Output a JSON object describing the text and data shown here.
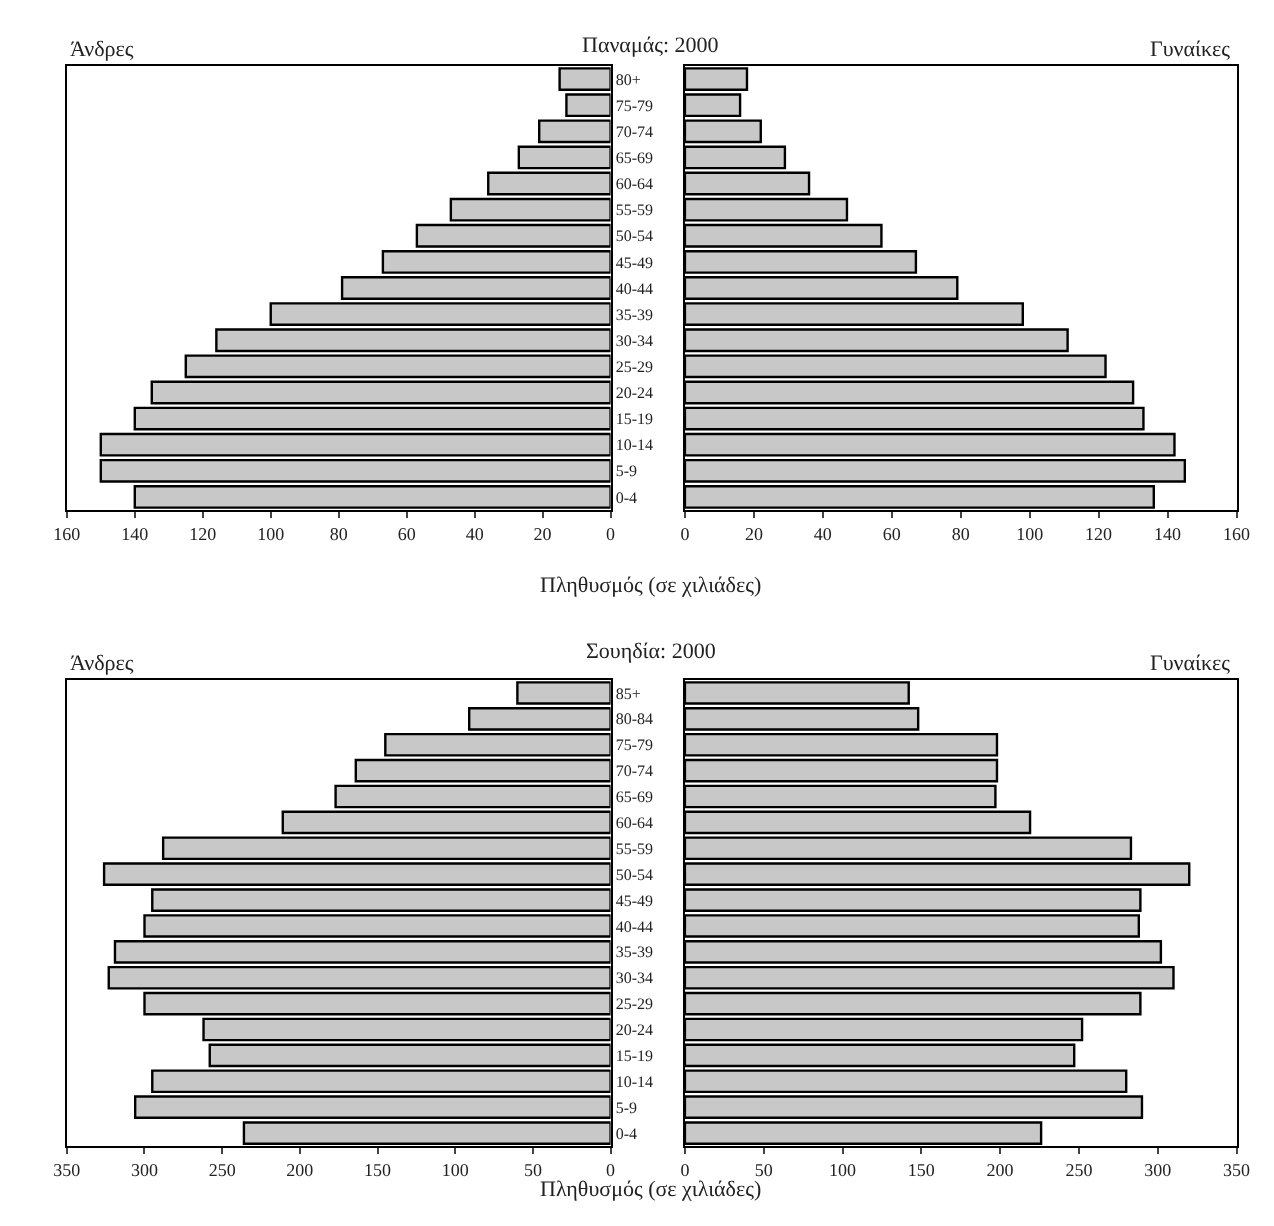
{
  "chart_data": [
    {
      "type": "bar",
      "orientation": "horizontal",
      "title": "Παναμάς: 2000",
      "xlabel": "Πληθυσμός (σε χιλιάδες)",
      "annotations": [
        "Άνδρες"
      ],
      "categories": [
        "80+",
        "75-79",
        "70-74",
        "65-69",
        "60-64",
        "55-59",
        "50-54",
        "45-49",
        "40-44",
        "35-39",
        "30-34",
        "25-29",
        "20-24",
        "15-19",
        "10-14",
        "5-9",
        "0-4"
      ],
      "series": [
        {
          "color": "#c8c8c8",
          "values": [
            15,
            13,
            21,
            27,
            36,
            47,
            57,
            67,
            79,
            100,
            116,
            125,
            135,
            140,
            150,
            150,
            140
          ]
        }
      ],
      "xlim": [
        160,
        0
      ],
      "xticks": [
        160,
        140,
        120,
        100,
        80,
        60,
        40,
        20,
        0
      ]
    },
    {
      "type": "bar",
      "orientation": "horizontal",
      "annotations": [
        "Γυναίκες"
      ],
      "categories": [
        null,
        null,
        null,
        null,
        null,
        null,
        null,
        null,
        null,
        null,
        null,
        null,
        null,
        null,
        null,
        null,
        null
      ],
      "series": [
        {
          "color": "#c8c8c8",
          "values": [
            18,
            16,
            22,
            29,
            36,
            47,
            57,
            67,
            79,
            98,
            111,
            122,
            130,
            133,
            142,
            145,
            136
          ]
        }
      ],
      "xlim": [
        0,
        160
      ],
      "xticks": [
        0,
        20,
        40,
        60,
        80,
        100,
        120,
        140,
        160
      ]
    },
    {
      "type": "bar",
      "orientation": "horizontal",
      "title": "Σουηδία: 2000",
      "xlabel": "Πληθυσμός (σε χιλιάδες)",
      "annotations": [
        "Άνδρες"
      ],
      "categories": [
        "85+",
        "80-84",
        "75-79",
        "70-74",
        "65-69",
        "60-64",
        "55-59",
        "50-54",
        "45-49",
        "40-44",
        "35-39",
        "30-34",
        "25-29",
        "20-24",
        "15-19",
        "10-14",
        "5-9",
        "0-4"
      ],
      "series": [
        {
          "color": "#c8c8c8",
          "values": [
            60,
            91,
            145,
            164,
            177,
            211,
            288,
            326,
            295,
            300,
            319,
            323,
            300,
            262,
            258,
            295,
            306,
            236
          ]
        }
      ],
      "xlim": [
        350,
        0
      ],
      "xticks": [
        350,
        300,
        250,
        200,
        150,
        100,
        50,
        0
      ]
    },
    {
      "type": "bar",
      "orientation": "horizontal",
      "annotations": [
        "Γυναίκες"
      ],
      "categories": [
        null,
        null,
        null,
        null,
        null,
        null,
        null,
        null,
        null,
        null,
        null,
        null,
        null,
        null,
        null,
        null,
        null,
        null
      ],
      "series": [
        {
          "color": "#c8c8c8",
          "values": [
            142,
            148,
            198,
            198,
            197,
            219,
            283,
            320,
            289,
            288,
            302,
            310,
            289,
            252,
            247,
            280,
            290,
            226
          ]
        }
      ],
      "xlim": [
        0,
        350
      ],
      "xticks": [
        0,
        50,
        100,
        150,
        200,
        250,
        300,
        350
      ]
    }
  ]
}
